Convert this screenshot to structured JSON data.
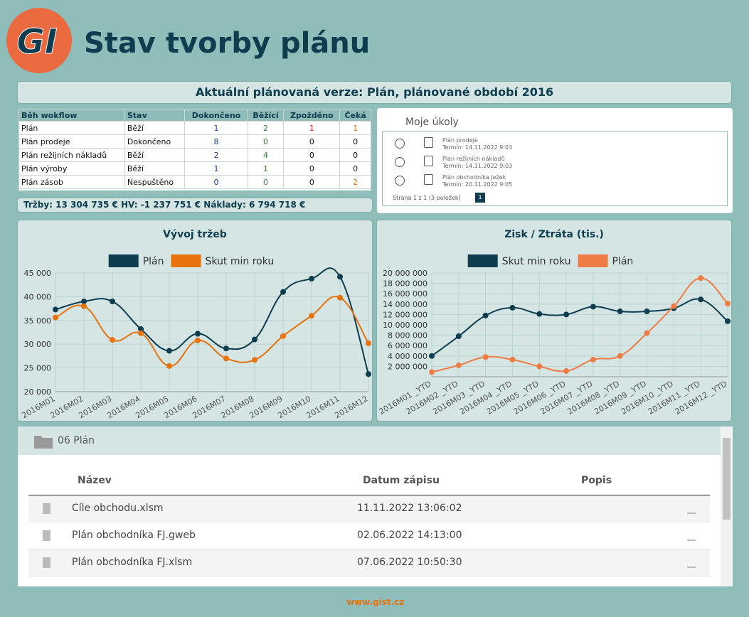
{
  "header": {
    "logo": "GI",
    "title": "Stav tvorby plánu"
  },
  "banner": "Aktuální plánovaná verze: Plán, plánované období 2016",
  "workflow": {
    "columns": [
      "Běh wokflow",
      "Stav",
      "Dokončeno",
      "Běžící",
      "Zpožděno",
      "Čeká"
    ],
    "rows": [
      [
        "Plán",
        "Běží",
        1,
        2,
        1,
        1
      ],
      [
        "Plán prodeje",
        "Dokončeno",
        8,
        0,
        0,
        0
      ],
      [
        "Plán režijních nákladů",
        "Běží",
        2,
        4,
        0,
        0
      ],
      [
        "Plán výroby",
        "Běží",
        1,
        1,
        0,
        0
      ],
      [
        "Plán zásob",
        "Nespuštěno",
        0,
        0,
        0,
        2
      ]
    ]
  },
  "summary": "Tržby: 13 304 735 € HV: -1 237 751 € Náklady: 6 794 718 €",
  "tasks": {
    "title": "Moje úkoly",
    "items": [
      {
        "name": "Plán prodeje",
        "due": "Termín: 14.11.2022 9:03"
      },
      {
        "name": "Plán režijních nákladů",
        "due": "Termín: 14.11.2022 9:03"
      },
      {
        "name": "Plán obchodníka Ježek",
        "due": "Termín: 20.11.2022 9:05"
      }
    ],
    "pager": "Strana 1 z 1 (3 položek)",
    "page": 1
  },
  "chart_data": [
    {
      "type": "line",
      "title": "Vývoj tržeb",
      "categories": [
        "2016M01",
        "2016M02",
        "2016M03",
        "2016M04",
        "2016M05",
        "2016M06",
        "2016M07",
        "2016M08",
        "2016M09",
        "2016M10",
        "2016M11",
        "2016M12"
      ],
      "series": [
        {
          "name": "Plán",
          "color": "#0d3d4f",
          "values": [
            37300,
            39000,
            39000,
            33200,
            28600,
            32200,
            29100,
            31000,
            41000,
            43800,
            44200,
            23700
          ]
        },
        {
          "name": "Skut min roku",
          "color": "#e8720c",
          "values": [
            35600,
            38000,
            30900,
            32300,
            25400,
            30800,
            27000,
            26700,
            31700,
            36000,
            39800,
            30200
          ]
        }
      ],
      "ylim": [
        20000,
        45000
      ],
      "yticks": [
        {
          "value": 20000,
          "label": "20 000"
        },
        {
          "value": 25000,
          "label": "25 000"
        },
        {
          "value": 30000,
          "label": "30 000"
        },
        {
          "value": 35000,
          "label": "35 000"
        },
        {
          "value": 40000,
          "label": "40 000"
        },
        {
          "value": 45000,
          "label": "45 000"
        }
      ],
      "grid": true,
      "legend": "top"
    },
    {
      "type": "line",
      "title": "Zisk / Ztráta (tis.)",
      "categories": [
        "2016M01 _YTD",
        "2016M02 _YTD",
        "2016M03 _YTD",
        "2016M04 _YTD",
        "2016M05 _YTD",
        "2016M06 _YTD",
        "2016M07 _YTD",
        "2016M08 _YTD",
        "2016M09 _YTD",
        "2016M10 _YTD",
        "2016M11 _YTD",
        "2016M12 _YTD"
      ],
      "series": [
        {
          "name": "Skut min roku",
          "color": "#0d3d4f",
          "values": [
            4000000,
            7800000,
            11800000,
            13300000,
            12100000,
            12000000,
            13500000,
            12600000,
            12600000,
            13200000,
            14900000,
            10700000
          ]
        },
        {
          "name": "Plán",
          "color": "#f07c45",
          "values": [
            900000,
            2200000,
            3800000,
            3300000,
            2000000,
            1100000,
            3300000,
            4000000,
            8400000,
            13600000,
            19000000,
            14100000
          ]
        }
      ],
      "ylim": [
        0,
        20000000
      ],
      "yticks": [
        {
          "value": 2000000,
          "label": "2 000 000"
        },
        {
          "value": 4000000,
          "label": "4 000 000"
        },
        {
          "value": 6000000,
          "label": "6 000 000"
        },
        {
          "value": 8000000,
          "label": "8 000 000"
        },
        {
          "value": 10000000,
          "label": "10 000 000"
        },
        {
          "value": 12000000,
          "label": "12 000 000"
        },
        {
          "value": 14000000,
          "label": "14 000 000"
        },
        {
          "value": 16000000,
          "label": "16 000 000"
        },
        {
          "value": 18000000,
          "label": "18 000 000"
        },
        {
          "value": 20000000,
          "label": "20 000 000"
        }
      ],
      "grid": true,
      "legend": "top"
    }
  ],
  "files": {
    "folder": "06 Plán",
    "columns": [
      "Název",
      "Datum zápisu",
      "Popis"
    ],
    "rows": [
      [
        "Cíle obchodu.xlsm",
        "11.11.2022 13:06:02"
      ],
      [
        "Plán obchodníka FJ.gweb",
        "02.06.2022 14:13:00"
      ],
      [
        "Plán obchodníka FJ.xlsm",
        "07.06.2022 10:50:30"
      ]
    ]
  },
  "footer": "www.gist.cz"
}
